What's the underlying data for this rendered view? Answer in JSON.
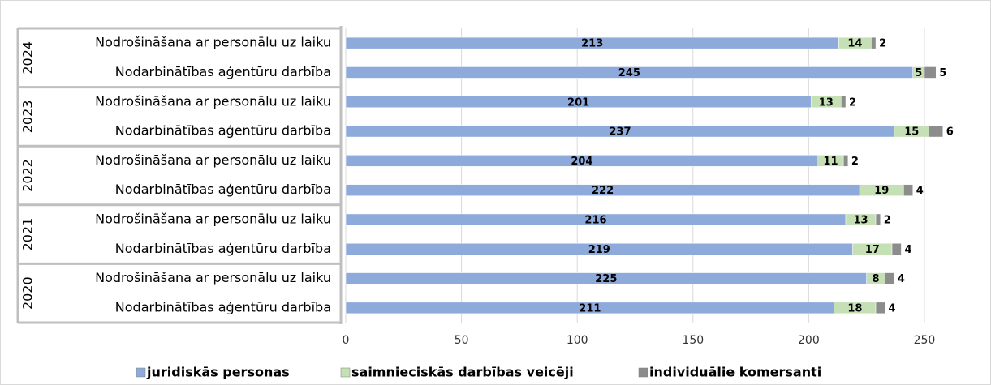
{
  "chart_data": {
    "type": "stacked-bar-horizontal",
    "groups": [
      {
        "name": "2024",
        "categories": [
          "Nodrošināšana ar personālu uz laiku",
          "Nodarbinātības aģentūru darbība"
        ]
      },
      {
        "name": "2023",
        "categories": [
          "Nodrošināšana ar personālu uz laiku",
          "Nodarbinātības aģentūru darbība"
        ]
      },
      {
        "name": "2022",
        "categories": [
          "Nodrošināšana ar personālu uz laiku",
          "Nodarbinātības aģentūru darbība"
        ]
      },
      {
        "name": "2021",
        "categories": [
          "Nodrošināšana ar personālu uz laiku",
          "Nodarbinātības aģentūru darbība"
        ]
      },
      {
        "name": "2020",
        "categories": [
          "Nodrošināšana ar personālu uz laiku",
          "Nodarbinātības aģentūru darbība"
        ]
      }
    ],
    "series": [
      {
        "name": "juridiskās personas",
        "color": "#8eaadb",
        "values": [
          213,
          245,
          201,
          237,
          204,
          222,
          216,
          219,
          225,
          211
        ]
      },
      {
        "name": "saimnieciskās darbības veicēji",
        "color": "#c5e0b4",
        "values": [
          14,
          5,
          13,
          15,
          11,
          19,
          13,
          17,
          8,
          18
        ]
      },
      {
        "name": "individuālie komersanti",
        "color": "#8c8c8c",
        "values": [
          2,
          5,
          2,
          6,
          2,
          4,
          2,
          4,
          4,
          4
        ]
      }
    ],
    "xlim": [
      0,
      270
    ],
    "xticks": [
      0,
      50,
      100,
      150,
      200,
      250
    ],
    "grid": true,
    "legend": "bottom"
  }
}
